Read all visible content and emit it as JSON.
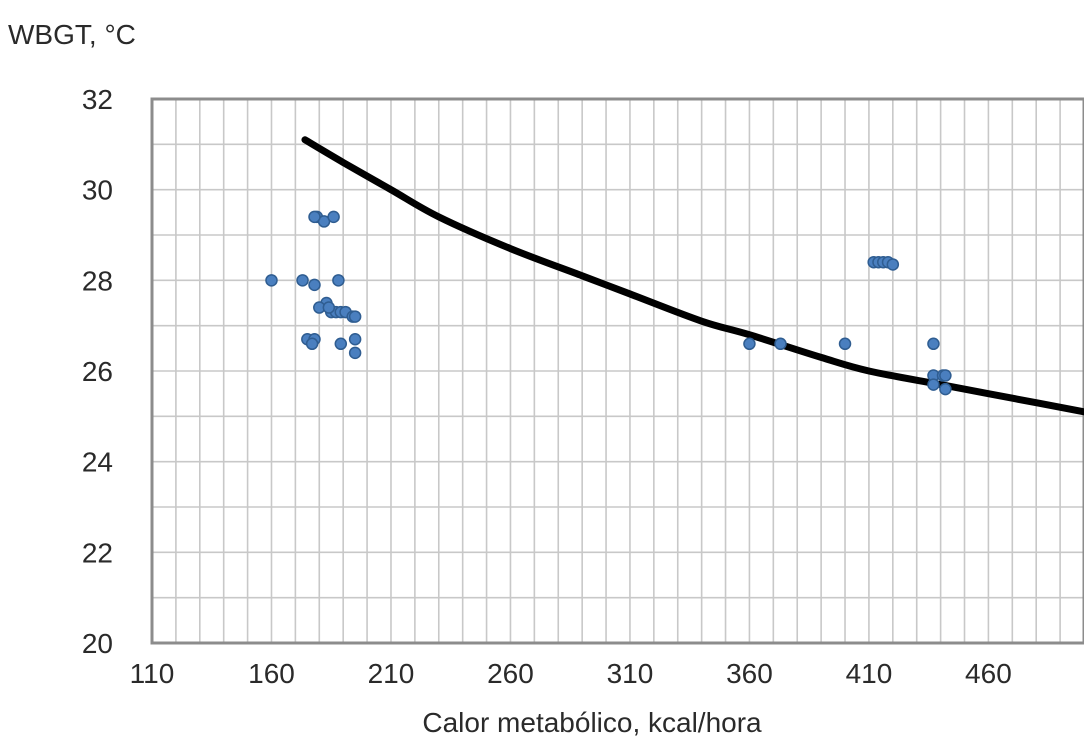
{
  "chart_data": {
    "type": "scatter",
    "title": "",
    "xlabel": "Calor metabólico, kcal/hora",
    "ylabel": "WBGT, °C",
    "xlim": [
      110,
      500
    ],
    "ylim": [
      20,
      32
    ],
    "x_ticks": [
      110,
      160,
      210,
      260,
      310,
      360,
      410,
      460
    ],
    "x_tick_labels": [
      "110",
      "160",
      "210",
      "260",
      "310",
      "360",
      "410",
      "460"
    ],
    "y_ticks": [
      20,
      22,
      24,
      26,
      28,
      30,
      32
    ],
    "y_tick_labels": [
      "20",
      "22",
      "24",
      "26",
      "28",
      "30",
      "32"
    ],
    "grid": true,
    "colors": {
      "points": "#4a7fbf",
      "point_edge": "#2f5d91",
      "curve": "#000000",
      "grid": "#c8c8c8",
      "frame": "#8c8c8c"
    },
    "series": [
      {
        "type": "scatter",
        "x": [
          160,
          173,
          178,
          179,
          182,
          183,
          185,
          186,
          187,
          188,
          189,
          191,
          194,
          195,
          195,
          175,
          178,
          177,
          189,
          178,
          180,
          184,
          195,
          360,
          373,
          400,
          412,
          414,
          416,
          418,
          420,
          437,
          437,
          441,
          442,
          437,
          442
        ],
        "y": [
          28.0,
          28.0,
          27.9,
          29.4,
          29.3,
          27.5,
          27.3,
          29.4,
          27.3,
          28.0,
          27.3,
          27.3,
          27.2,
          26.7,
          26.4,
          26.7,
          26.7,
          26.6,
          26.6,
          29.4,
          27.4,
          27.4,
          27.2,
          26.6,
          26.6,
          26.6,
          28.4,
          28.4,
          28.4,
          28.4,
          28.35,
          26.6,
          25.9,
          25.9,
          25.6,
          25.7,
          25.9
        ]
      },
      {
        "type": "line",
        "x": [
          174,
          190,
          210,
          230,
          260,
          290,
          310,
          340,
          360,
          390,
          410,
          440,
          460,
          480,
          500
        ],
        "y": [
          31.1,
          30.6,
          30.0,
          29.4,
          28.7,
          28.1,
          27.7,
          27.1,
          26.8,
          26.3,
          26.0,
          25.7,
          25.5,
          25.3,
          25.1
        ]
      }
    ]
  }
}
